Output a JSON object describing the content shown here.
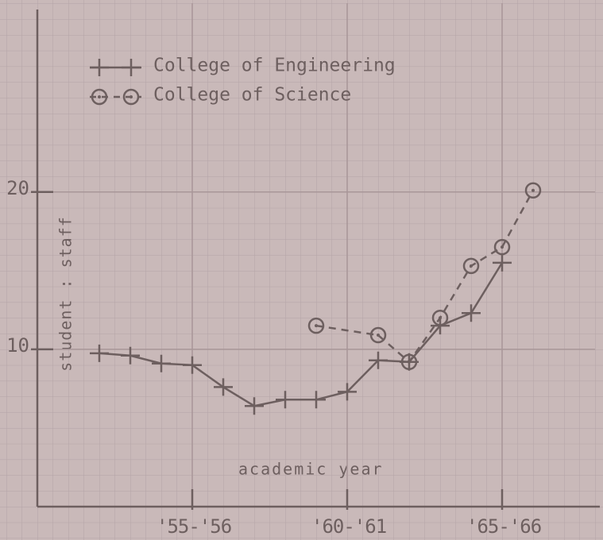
{
  "chart_data": {
    "type": "line",
    "xlabel": "academic year",
    "ylabel": "student : staff",
    "xlim": [
      1950,
      1968
    ],
    "ylim": [
      0,
      32
    ],
    "xticks": [
      {
        "value": 1955,
        "label": "'55-'56"
      },
      {
        "value": 1960,
        "label": "'60-'61"
      },
      {
        "value": 1965,
        "label": "'65-'66"
      }
    ],
    "yticks": [
      10,
      20
    ],
    "grid": true,
    "legend": "upper left",
    "series": [
      {
        "name": "College of Engineering",
        "color": "#6d5f5f",
        "marker": "plus",
        "dashed": false,
        "x": [
          1952,
          1953,
          1954,
          1955,
          1956,
          1957,
          1958,
          1959,
          1960,
          1961,
          1962,
          1963,
          1964,
          1965
        ],
        "values": [
          9.75,
          9.6,
          9.1,
          9.0,
          7.6,
          6.4,
          6.8,
          6.8,
          7.3,
          9.3,
          9.2,
          11.5,
          12.3,
          15.5
        ]
      },
      {
        "name": "College of Science",
        "color": "#6d5f5f",
        "marker": "circle-dot",
        "dashed": true,
        "x": [
          1959,
          1961,
          1962,
          1963,
          1964,
          1965,
          1966
        ],
        "values": [
          11.5,
          10.9,
          9.2,
          12.0,
          15.3,
          16.5,
          20.1
        ]
      }
    ]
  }
}
